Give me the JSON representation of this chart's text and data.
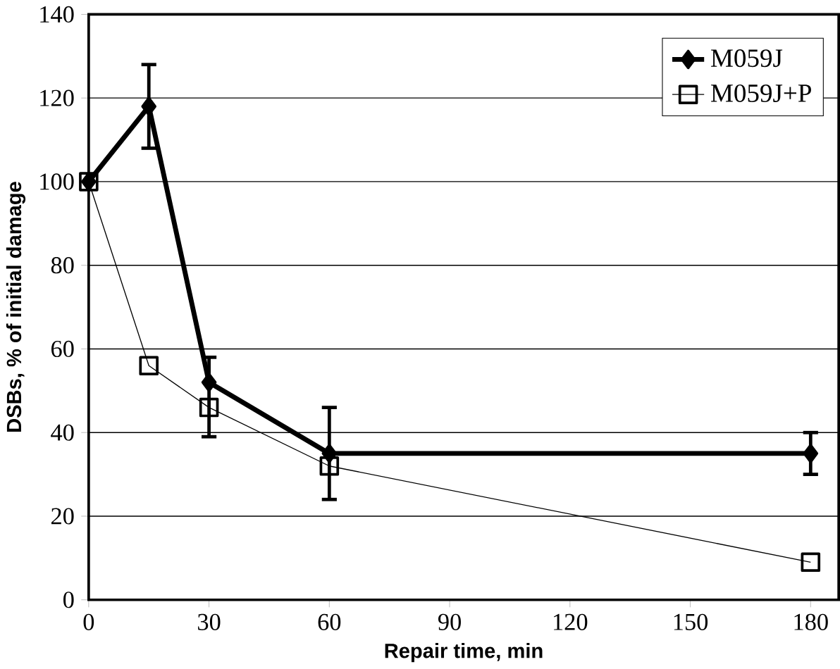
{
  "chart_data": {
    "type": "line",
    "xlabel": "Repair time, min",
    "ylabel": "DSBs, % of initial damage",
    "x": [
      0,
      15,
      30,
      60,
      180
    ],
    "series": [
      {
        "name": "M059J",
        "color": "#000000",
        "marker": "diamond",
        "values": [
          100,
          118,
          52,
          35,
          35
        ],
        "errors": [
          null,
          10,
          [
            39,
            58
          ],
          11,
          5
        ]
      },
      {
        "name": "M059J+P",
        "color": "#000000",
        "marker": "square",
        "values": [
          100,
          56,
          46,
          32,
          9
        ]
      }
    ],
    "xlim": [
      0,
      187
    ],
    "xticks": [
      0,
      30,
      60,
      90,
      120,
      150,
      180
    ],
    "ylim": [
      0,
      140
    ],
    "yticks": [
      0,
      20,
      40,
      60,
      80,
      100,
      120,
      140
    ],
    "grid": "y",
    "legend": "top right",
    "line_style": "solid"
  }
}
